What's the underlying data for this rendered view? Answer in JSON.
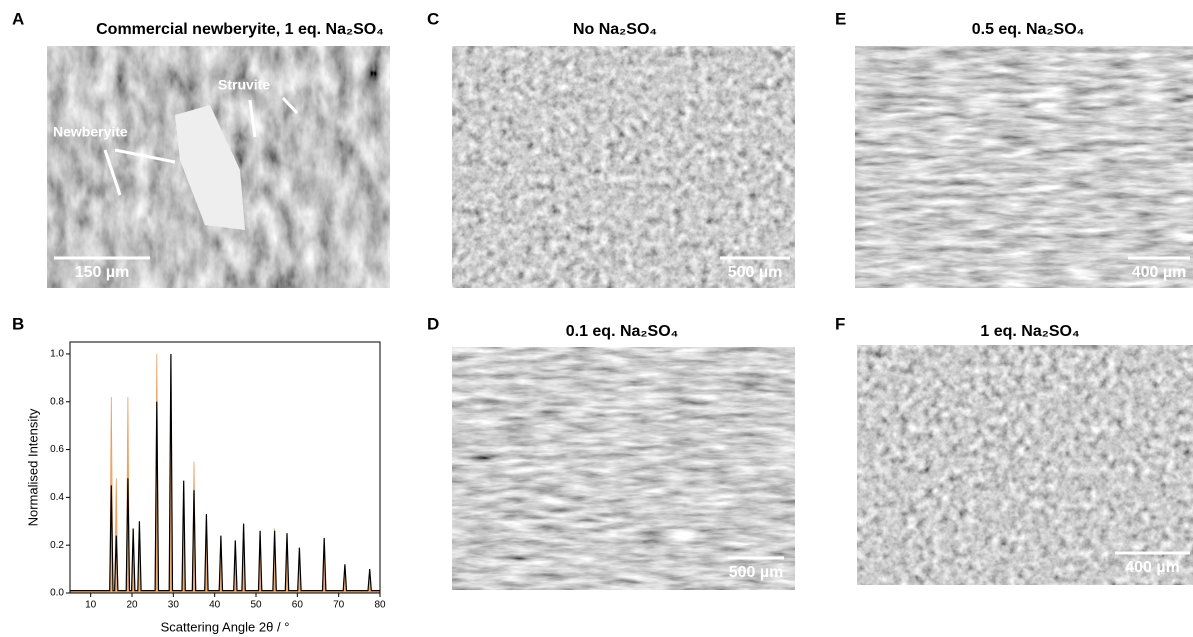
{
  "panels": [
    {
      "letter": "A",
      "title": "Commercial newberyite, 1 eq. Na₂SO₄",
      "scale_bar": "150 µm",
      "annotations": [
        "Struvite",
        "Newberyite"
      ]
    },
    {
      "letter": "C",
      "title": "No Na₂SO₄",
      "scale_bar": "500 µm"
    },
    {
      "letter": "D",
      "title": "0.1 eq. Na₂SO₄",
      "scale_bar": "500 µm"
    },
    {
      "letter": "E",
      "title": "0.5 eq. Na₂SO₄",
      "scale_bar": "400 µm"
    },
    {
      "letter": "F",
      "title": "1 eq. Na₂SO₄",
      "scale_bar": "400 µm"
    }
  ],
  "chart_data": {
    "type": "line",
    "panel_label": "B",
    "x_label": "Scattering Angle 2θ / °",
    "y_label": "Normalised Intensity",
    "x": [
      5,
      14.6,
      15,
      15.4,
      15.8,
      16.2,
      16.6,
      18.6,
      19,
      19.4,
      19.9,
      20.3,
      20.7,
      21.4,
      21.8,
      22.2,
      25.6,
      26,
      26.4,
      29,
      29.4,
      29.8,
      32.1,
      32.5,
      32.9,
      34.6,
      35,
      35.4,
      37.6,
      38,
      38.4,
      41.1,
      41.5,
      41.9,
      44.6,
      45,
      45.4,
      46.6,
      47,
      47.4,
      50.6,
      51,
      51.4,
      54.1,
      54.5,
      54.9,
      57.1,
      57.5,
      57.9,
      60.1,
      60.5,
      60.9,
      66.1,
      66.5,
      66.9,
      71.1,
      71.5,
      71.9,
      77.1,
      77.5,
      77.9,
      80
    ],
    "series": [
      {
        "color": "#e8a060",
        "fill": true,
        "values": [
          0.01,
          0.01,
          0.82,
          0.01,
          0.01,
          0.48,
          0.01,
          0.01,
          0.82,
          0.01,
          0.01,
          0.25,
          0.01,
          0.01,
          0.2,
          0.01,
          0.01,
          1.0,
          0.01,
          0.01,
          0.73,
          0.01,
          0.01,
          0.3,
          0.01,
          0.01,
          0.55,
          0.01,
          0.01,
          0.25,
          0.01,
          0.01,
          0.2,
          0.01,
          0.01,
          0.18,
          0.01,
          0.01,
          0.25,
          0.01,
          0.01,
          0.2,
          0.01,
          0.01,
          0.27,
          0.01,
          0.01,
          0.2,
          0.01,
          0.01,
          0.15,
          0.01,
          0.01,
          0.2,
          0.01,
          0.01,
          0.1,
          0.01,
          0.01,
          0.08,
          0.01,
          0.01
        ]
      },
      {
        "color": "#000000",
        "fill": false,
        "values": [
          0.01,
          0.01,
          0.45,
          0.01,
          0.01,
          0.24,
          0.01,
          0.01,
          0.48,
          0.01,
          0.01,
          0.27,
          0.01,
          0.01,
          0.3,
          0.01,
          0.01,
          0.8,
          0.01,
          0.01,
          1.0,
          0.01,
          0.01,
          0.47,
          0.01,
          0.01,
          0.43,
          0.01,
          0.01,
          0.33,
          0.01,
          0.01,
          0.24,
          0.01,
          0.01,
          0.22,
          0.01,
          0.01,
          0.29,
          0.01,
          0.01,
          0.26,
          0.01,
          0.01,
          0.26,
          0.01,
          0.01,
          0.25,
          0.01,
          0.01,
          0.19,
          0.01,
          0.01,
          0.23,
          0.01,
          0.01,
          0.12,
          0.01,
          0.01,
          0.1,
          0.01,
          0.01
        ]
      }
    ],
    "xlim": [
      5,
      80
    ],
    "ylim": [
      0,
      1.05
    ],
    "xticks": [
      10,
      20,
      30,
      40,
      50,
      60,
      70,
      80
    ],
    "yticks": [
      {
        "value": 0,
        "label": "0.0"
      },
      {
        "value": 0.2,
        "label": "0.2"
      },
      {
        "value": 0.4,
        "label": "0.4"
      },
      {
        "value": 0.6,
        "label": "0.6"
      },
      {
        "value": 0.8,
        "label": "0.8"
      },
      {
        "value": 1.0,
        "label": "1.0"
      }
    ]
  }
}
